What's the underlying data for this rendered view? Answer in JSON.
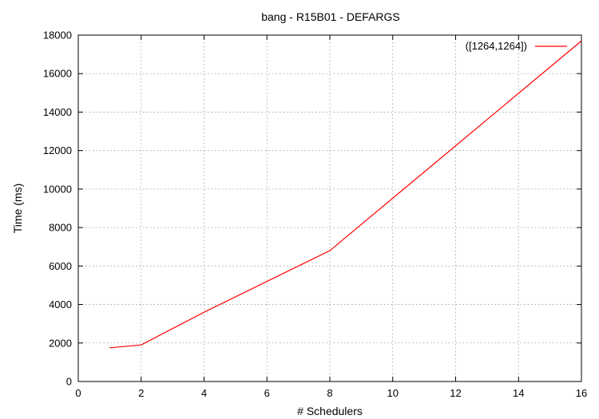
{
  "chart_data": {
    "type": "line",
    "title": "bang - R15B01 - DEFARGS",
    "xlabel": "# Schedulers",
    "ylabel": "Time (ms)",
    "xlim": [
      0,
      16
    ],
    "ylim": [
      0,
      18000
    ],
    "x_ticks": [
      0,
      2,
      4,
      6,
      8,
      10,
      12,
      14,
      16
    ],
    "y_ticks": [
      0,
      2000,
      4000,
      6000,
      8000,
      10000,
      12000,
      14000,
      16000,
      18000
    ],
    "grid": true,
    "legend_position": "top-right",
    "series": [
      {
        "name": "([1264,1264])",
        "color": "#ff0000",
        "x": [
          1,
          2,
          4,
          8,
          16
        ],
        "y": [
          1750,
          1900,
          3600,
          6800,
          17700
        ]
      }
    ]
  }
}
